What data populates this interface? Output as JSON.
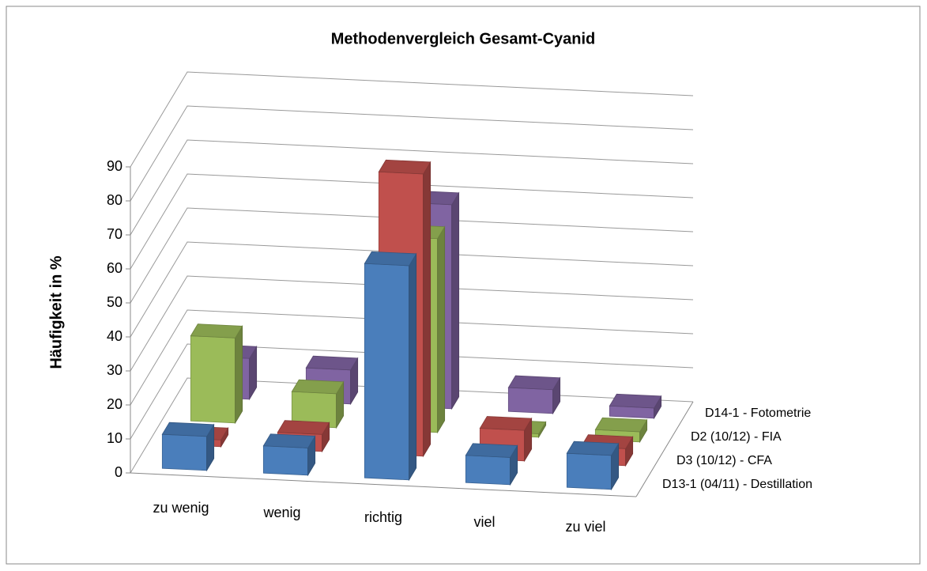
{
  "chart_data": {
    "type": "bar3d",
    "title": "Methodenvergleich Gesamt-Cyanid",
    "y_label": "Häufigkeit in %",
    "categories": [
      "zu wenig",
      "wenig",
      "richtig",
      "viel",
      "zu viel"
    ],
    "series": [
      {
        "name": "D13-1 (04/11) - Destillation",
        "color": "#4a7ebb",
        "values": [
          10,
          8,
          63,
          8,
          10
        ]
      },
      {
        "name": "D3 (10/12) - CFA",
        "color": "#c0504d",
        "values": [
          2,
          5,
          83,
          9,
          5
        ]
      },
      {
        "name": "D2 (10/12) - FIA",
        "color": "#9bbb59",
        "values": [
          25,
          10,
          57,
          1,
          3
        ]
      },
      {
        "name": "D14-1 - Fotometrie",
        "color": "#8064a2",
        "values": [
          12,
          10,
          60,
          7,
          3
        ]
      }
    ],
    "ylim": [
      0,
      90
    ],
    "yticks": [
      0,
      10,
      20,
      30,
      40,
      50,
      60,
      70,
      80,
      90
    ],
    "grid": true
  }
}
